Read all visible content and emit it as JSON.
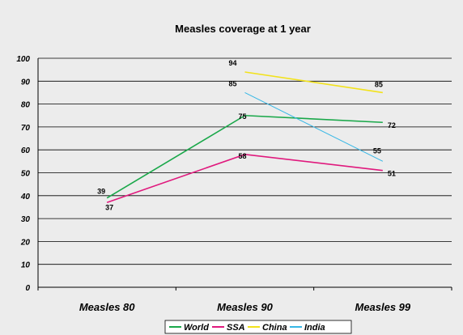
{
  "chart_data": {
    "type": "line",
    "title": "Measles coverage at 1 year",
    "categories": [
      "Measles 80",
      "Measles 90",
      "Measles 99"
    ],
    "ylim": [
      0,
      100
    ],
    "yticks": [
      0,
      10,
      20,
      30,
      40,
      50,
      60,
      70,
      80,
      90,
      100
    ],
    "grid": true,
    "legend_position": "bottom",
    "series": [
      {
        "name": "World",
        "color": "#1aa84a",
        "values": [
          39,
          75,
          72
        ]
      },
      {
        "name": "SSA",
        "color": "#e0197d",
        "values": [
          37,
          58,
          51
        ]
      },
      {
        "name": "China",
        "color": "#f2e21b",
        "values": [
          null,
          94,
          85
        ]
      },
      {
        "name": "India",
        "color": "#36b7e6",
        "values": [
          null,
          85,
          55
        ]
      }
    ]
  }
}
